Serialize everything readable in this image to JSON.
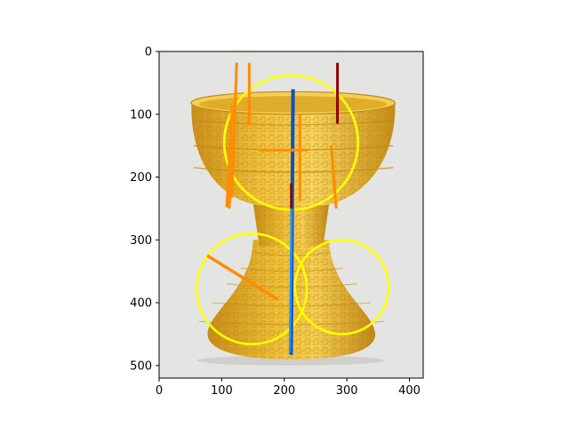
{
  "chart_data": {
    "type": "image-annotation",
    "title": "",
    "xlabel": "",
    "ylabel": "",
    "xlim": [
      0,
      422
    ],
    "ylim": [
      520,
      0
    ],
    "x_ticks": [
      0,
      100,
      200,
      300,
      400
    ],
    "y_ticks": [
      0,
      100,
      200,
      300,
      400,
      500
    ],
    "image": {
      "subject": "yellow glazed ceramic stem vessel with incised archaic-style pattern",
      "background": "#e4e4e2",
      "glaze": "#e8b52a",
      "glaze_dark": "#c08a14",
      "glaze_light": "#f5cf55"
    },
    "circles": [
      {
        "name": "upper-circle",
        "cx": 211,
        "cy": 145,
        "r": 107,
        "color": "#ffff00"
      },
      {
        "name": "lower-left-circle",
        "cx": 148,
        "cy": 378,
        "r": 88,
        "color": "#ffff00"
      },
      {
        "name": "lower-right-circle",
        "cx": 292,
        "cy": 375,
        "r": 75,
        "color": "#ffff00"
      }
    ],
    "segments": [
      {
        "name": "blue-vertical-dark",
        "x1": 214,
        "y1": 60,
        "x2": 211,
        "y2": 483,
        "color": "#0a50c8",
        "width": 4
      },
      {
        "name": "blue-vertical-light",
        "x1": 212,
        "y1": 250,
        "x2": 209,
        "y2": 480,
        "color": "#1e90ff",
        "width": 2.5
      },
      {
        "name": "darkred-top-right",
        "x1": 285,
        "y1": 18,
        "x2": 285,
        "y2": 115,
        "color": "#8b0000",
        "width": 3
      },
      {
        "name": "darkred-short",
        "x1": 211,
        "y1": 210,
        "x2": 211,
        "y2": 250,
        "color": "#8b0000",
        "width": 2.5
      },
      {
        "name": "orange-a",
        "x1": 124,
        "y1": 18,
        "x2": 116,
        "y2": 233,
        "color": "#ff8c00",
        "width": 3
      },
      {
        "name": "orange-b",
        "x1": 144,
        "y1": 18,
        "x2": 144,
        "y2": 118,
        "color": "#ff8c00",
        "width": 3
      },
      {
        "name": "orange-c",
        "x1": 117,
        "y1": 85,
        "x2": 108,
        "y2": 248,
        "color": "#ff8c00",
        "width": 3
      },
      {
        "name": "orange-d",
        "x1": 120,
        "y1": 120,
        "x2": 112,
        "y2": 250,
        "color": "#ff8c00",
        "width": 3
      },
      {
        "name": "orange-e",
        "x1": 225,
        "y1": 100,
        "x2": 225,
        "y2": 238,
        "color": "#ff8c00",
        "width": 3
      },
      {
        "name": "orange-f",
        "x1": 275,
        "y1": 150,
        "x2": 283,
        "y2": 250,
        "color": "#ff8c00",
        "width": 3
      },
      {
        "name": "orange-horizontal",
        "x1": 160,
        "y1": 157,
        "x2": 237,
        "y2": 157,
        "color": "#ff8c00",
        "width": 3
      },
      {
        "name": "orange-diagonal",
        "x1": 77,
        "y1": 325,
        "x2": 190,
        "y2": 395,
        "color": "#ff8c00",
        "width": 3.5
      }
    ]
  }
}
